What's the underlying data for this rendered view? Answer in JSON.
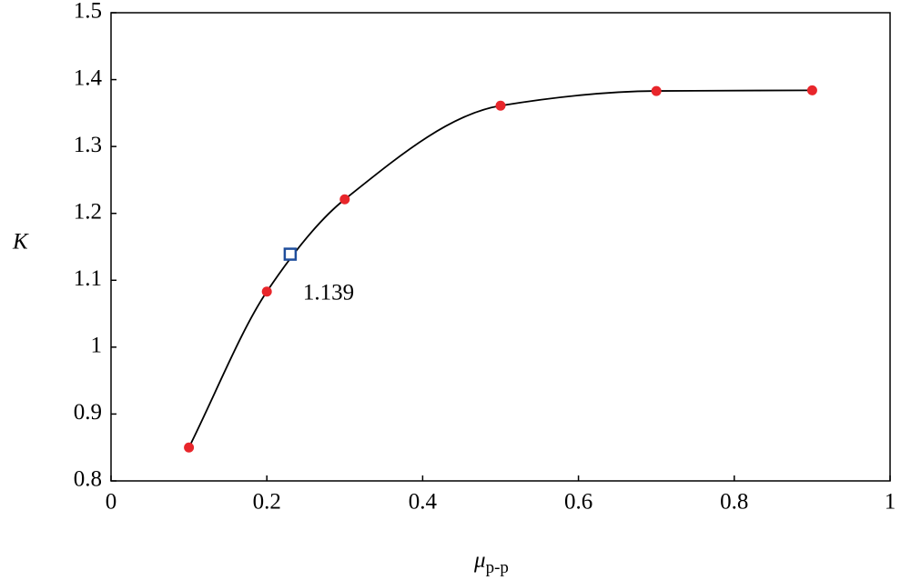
{
  "chart_data": {
    "type": "line",
    "x_label": "μ",
    "x_label_sub": "p-p",
    "y_label": "K",
    "series": [
      {
        "x": [
          0.1,
          0.2,
          0.3,
          0.5,
          0.7,
          0.9
        ],
        "values": [
          0.85,
          1.083,
          1.221,
          1.361,
          1.383,
          1.384
        ],
        "color": "#e8262b",
        "line_color": "#000000",
        "marker": "circle"
      },
      {
        "x": [
          0.23
        ],
        "values": [
          1.139
        ],
        "value_labels": [
          "1.139"
        ],
        "color": "#1f4e9c",
        "marker": "square"
      }
    ],
    "xlim": [
      0,
      1
    ],
    "xticks": [
      0,
      0.2,
      0.4,
      0.6,
      0.8,
      1
    ],
    "ylim": [
      0.8,
      1.5
    ],
    "yticks": [
      0.8,
      0.9,
      1,
      1.1,
      1.2,
      1.3,
      1.4,
      1.5
    ],
    "grid": false
  }
}
